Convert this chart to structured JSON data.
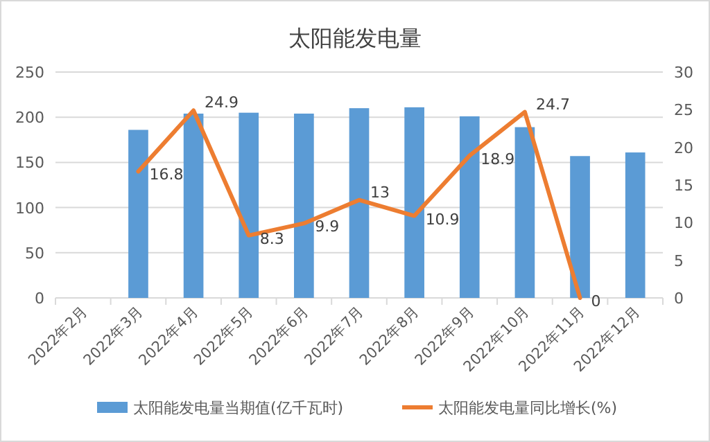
{
  "chart_data": {
    "type": "bar",
    "title": "太阳能发电量",
    "categories": [
      "2022年2月",
      "2022年3月",
      "2022年4月",
      "2022年5月",
      "2022年6月",
      "2022年7月",
      "2022年8月",
      "2022年9月",
      "2022年10月",
      "2022年11月",
      "2022年12月"
    ],
    "series": [
      {
        "name": "太阳能发电量当期值(亿千瓦时)",
        "color": "#5b9bd5",
        "values": [
          null,
          186,
          204,
          205,
          204,
          210,
          211,
          201,
          189,
          157,
          161
        ]
      },
      {
        "name": "太阳能发电量同比增长(%)",
        "type": "line",
        "axis": "y2",
        "color": "#ed7d31",
        "values": [
          null,
          16.8,
          24.9,
          8.3,
          9.9,
          13,
          10.9,
          18.9,
          24.7,
          0,
          null
        ],
        "value_labels": [
          null,
          "16.8",
          "24.9",
          "8.3",
          "9.9",
          "13",
          "10.9",
          "18.9",
          "24.7",
          "0",
          null
        ]
      }
    ],
    "ylim": [
      0,
      250
    ],
    "yticks": [
      0,
      50,
      100,
      150,
      200,
      250
    ],
    "y2lim": [
      0,
      30
    ],
    "y2ticks": [
      0,
      5,
      10,
      15,
      20,
      25,
      30
    ],
    "grid": "y",
    "legend": "bottom",
    "marker": "none"
  }
}
